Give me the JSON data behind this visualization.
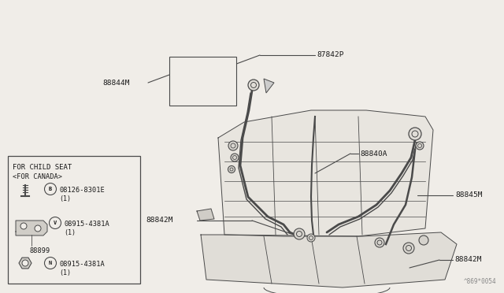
{
  "bg_color": "#f0ede8",
  "line_color": "#4a4a4a",
  "text_color": "#1a1a1a",
  "watermark": "^869*0054",
  "inset_title1": "FOR CHILD SEAT",
  "inset_title2": "<FOR CANADA>",
  "part_87842P_label": "87842P",
  "part_88844M_label": "88844M",
  "part_88840A_label": "88840A",
  "part_88845M_label": "88845M",
  "part_88842M_label": "88842M",
  "inset_b_part": "08126-8301E",
  "inset_b_qty": "(1)",
  "inset_v_part": "08915-4381A",
  "inset_v_qty": "(1)",
  "inset_88899": "88899",
  "inset_n_part": "08915-4381A",
  "inset_n_qty": "(1)"
}
